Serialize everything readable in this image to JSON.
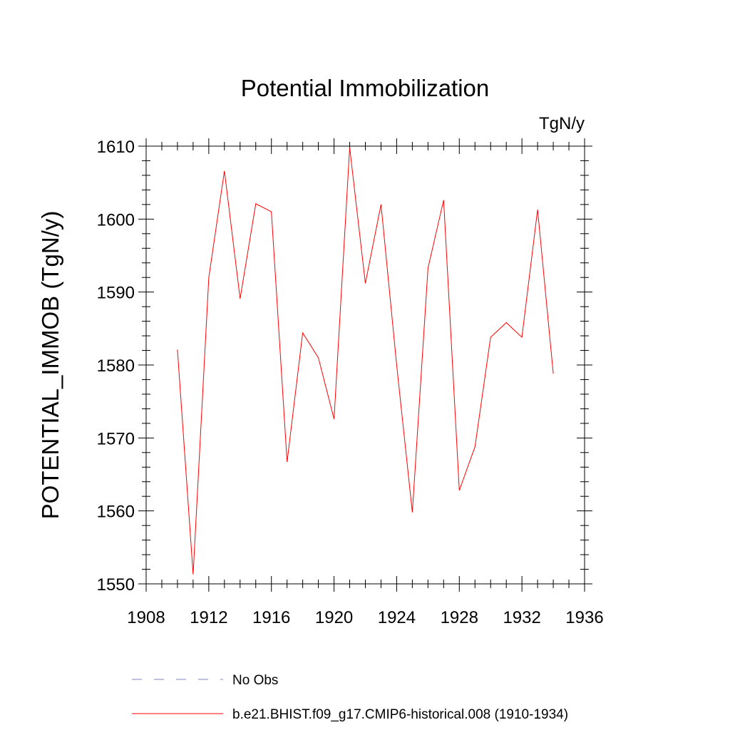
{
  "chart_data": {
    "type": "line",
    "title": "Potential Immobilization",
    "units_label": "TgN/y",
    "ylabel": "POTENTIAL_IMMOB  (TgN/y)",
    "xlabel": "",
    "xlim": [
      1908,
      1936
    ],
    "ylim": [
      1550,
      1610
    ],
    "x_ticks": [
      1908,
      1912,
      1916,
      1920,
      1924,
      1928,
      1932,
      1936
    ],
    "y_ticks": [
      1550,
      1560,
      1570,
      1580,
      1590,
      1600,
      1610
    ],
    "grid": false,
    "legend_position": "bottom",
    "series": [
      {
        "name": "b.e21.BHIST.f09_g17.CMIP6-historical.008 (1910-1934)",
        "color": "#ff0000",
        "dash": "solid",
        "x": [
          1910,
          1911,
          1912,
          1913,
          1914,
          1915,
          1916,
          1917,
          1918,
          1919,
          1920,
          1921,
          1922,
          1923,
          1924,
          1925,
          1926,
          1927,
          1928,
          1929,
          1930,
          1931,
          1932,
          1933,
          1934
        ],
        "values": [
          1582.1,
          1551.3,
          1592.0,
          1606.6,
          1589.1,
          1602.1,
          1601.0,
          1566.7,
          1584.4,
          1581.0,
          1572.6,
          1609.8,
          1591.2,
          1602.0,
          1580.0,
          1559.8,
          1593.3,
          1602.6,
          1562.8,
          1568.8,
          1583.8,
          1585.8,
          1583.8,
          1601.3,
          1578.8
        ]
      }
    ],
    "legend": [
      {
        "name": "No Obs",
        "color": "#8080c0",
        "dash": "dashed"
      },
      {
        "name": "b.e21.BHIST.f09_g17.CMIP6-historical.008 (1910-1934)",
        "color": "#ff0000",
        "dash": "solid"
      }
    ]
  }
}
